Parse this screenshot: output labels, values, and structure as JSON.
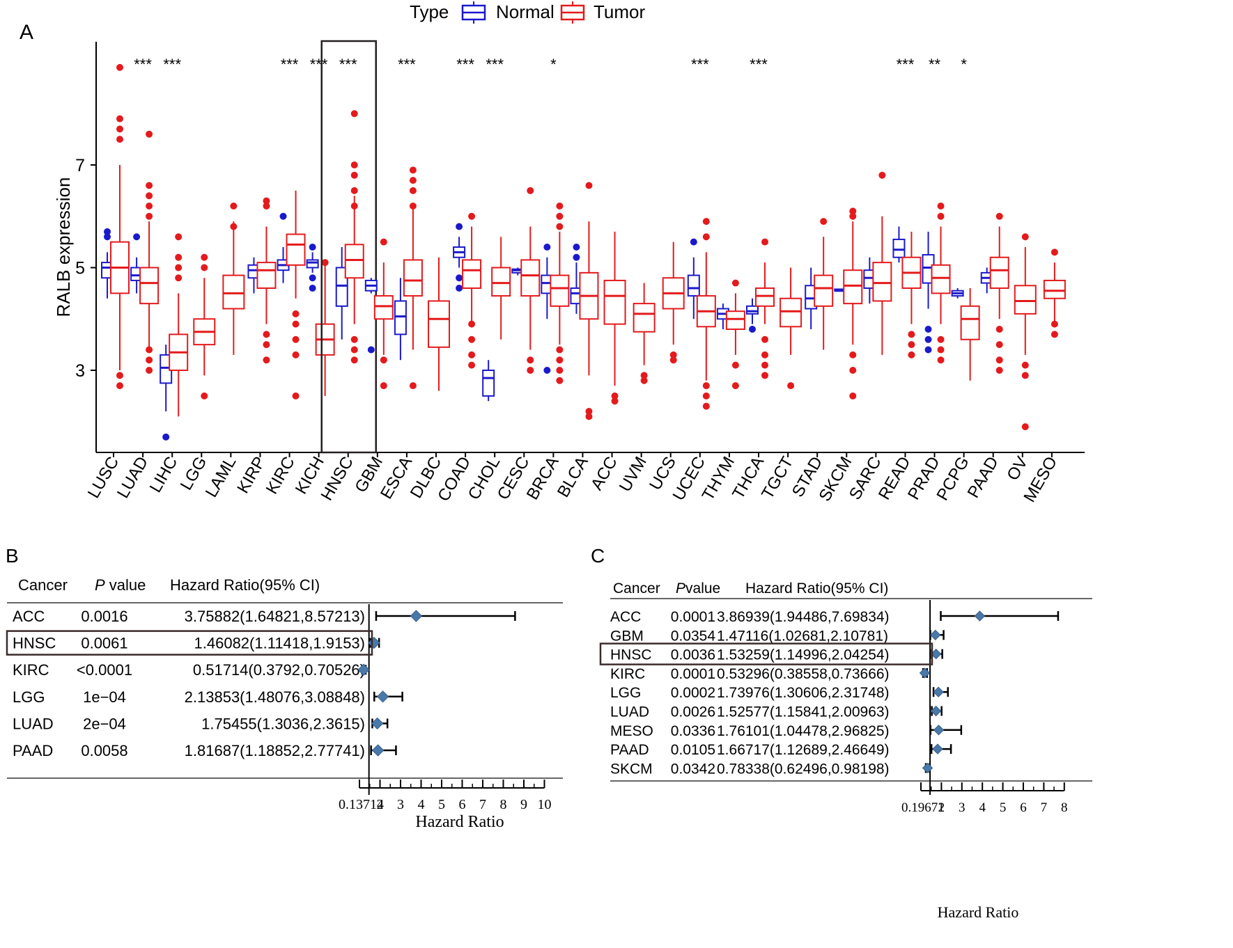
{
  "chart_data": [
    {
      "panel": "A",
      "type": "box",
      "ylabel": "RALB expression",
      "ylim": [
        1.4,
        9.4
      ],
      "yticks": [
        3,
        5,
        7
      ],
      "legend": {
        "title": "Type",
        "entries": [
          "Normal",
          "Tumor"
        ],
        "colors": [
          "#1a1acc",
          "#e41a1c"
        ],
        "placement": "top"
      },
      "highlight": "HNSC",
      "cancers": [
        {
          "name": "LUSC",
          "sig": "",
          "normal": {
            "q1": 4.8,
            "med": 5.0,
            "q3": 5.1,
            "lo": 4.4,
            "hi": 5.3,
            "out": [
              5.6,
              5.7
            ]
          },
          "tumor": {
            "q1": 4.5,
            "med": 5.0,
            "q3": 5.5,
            "lo": 3.0,
            "hi": 7.0,
            "out": [
              8.9,
              7.9,
              7.7,
              7.5,
              2.9,
              2.7
            ]
          }
        },
        {
          "name": "LUAD",
          "sig": "***",
          "normal": {
            "q1": 4.75,
            "med": 4.85,
            "q3": 5.0,
            "lo": 4.5,
            "hi": 5.2,
            "out": [
              5.6
            ]
          },
          "tumor": {
            "q1": 4.3,
            "med": 4.7,
            "q3": 5.0,
            "lo": 3.4,
            "hi": 5.9,
            "out": [
              7.6,
              6.6,
              6.4,
              6.2,
              6.0,
              3.4,
              3.2,
              3.0
            ]
          }
        },
        {
          "name": "LIHC",
          "sig": "***",
          "normal": {
            "q1": 2.75,
            "med": 3.05,
            "q3": 3.3,
            "lo": 2.2,
            "hi": 3.5,
            "out": [
              1.7
            ]
          },
          "tumor": {
            "q1": 3.0,
            "med": 3.35,
            "q3": 3.7,
            "lo": 2.1,
            "hi": 4.5,
            "out": [
              5.6,
              5.2,
              5.0,
              4.8
            ]
          }
        },
        {
          "name": "LGG",
          "sig": "",
          "normal": null,
          "tumor": {
            "q1": 3.5,
            "med": 3.75,
            "q3": 4.0,
            "lo": 2.9,
            "hi": 4.8,
            "out": [
              5.2,
              5.0,
              2.5
            ]
          }
        },
        {
          "name": "LAML",
          "sig": "",
          "normal": null,
          "tumor": {
            "q1": 4.2,
            "med": 4.5,
            "q3": 4.85,
            "lo": 3.3,
            "hi": 5.9,
            "out": [
              6.2,
              5.8
            ]
          }
        },
        {
          "name": "KIRP",
          "sig": "",
          "normal": {
            "q1": 4.8,
            "med": 4.95,
            "q3": 5.05,
            "lo": 4.5,
            "hi": 5.2,
            "out": []
          },
          "tumor": {
            "q1": 4.6,
            "med": 4.95,
            "q3": 5.1,
            "lo": 3.9,
            "hi": 5.8,
            "out": [
              6.3,
              6.2,
              3.7,
              3.5,
              3.2
            ]
          }
        },
        {
          "name": "KIRC",
          "sig": "***",
          "normal": {
            "q1": 4.95,
            "med": 5.05,
            "q3": 5.15,
            "lo": 4.7,
            "hi": 5.4,
            "out": [
              6.0
            ]
          },
          "tumor": {
            "q1": 5.05,
            "med": 5.45,
            "q3": 5.65,
            "lo": 4.4,
            "hi": 6.5,
            "out": [
              4.1,
              3.9,
              3.6,
              3.3,
              2.5
            ]
          }
        },
        {
          "name": "KICH",
          "sig": "***",
          "normal": {
            "q1": 5.0,
            "med": 5.1,
            "q3": 5.15,
            "lo": 4.9,
            "hi": 5.3,
            "out": [
              5.4,
              4.8,
              4.6
            ]
          },
          "tumor": {
            "q1": 3.3,
            "med": 3.6,
            "q3": 3.9,
            "lo": 2.5,
            "hi": 5.1,
            "out": [
              5.1
            ]
          }
        },
        {
          "name": "HNSC",
          "sig": "***",
          "normal": {
            "q1": 4.25,
            "med": 4.65,
            "q3": 5.0,
            "lo": 3.6,
            "hi": 5.4,
            "out": []
          },
          "tumor": {
            "q1": 4.8,
            "med": 5.15,
            "q3": 5.45,
            "lo": 3.9,
            "hi": 6.4,
            "out": [
              8.0,
              7.0,
              6.8,
              6.5,
              6.2,
              3.6,
              3.4,
              3.2
            ]
          }
        },
        {
          "name": "GBM",
          "sig": "",
          "normal": {
            "q1": 4.55,
            "med": 4.65,
            "q3": 4.75,
            "lo": 4.5,
            "hi": 4.8,
            "out": [
              3.4
            ]
          },
          "tumor": {
            "q1": 4.0,
            "med": 4.25,
            "q3": 4.45,
            "lo": 3.3,
            "hi": 5.1,
            "out": [
              5.5,
              3.2,
              2.7
            ]
          }
        },
        {
          "name": "ESCA",
          "sig": "***",
          "normal": {
            "q1": 3.7,
            "med": 4.05,
            "q3": 4.35,
            "lo": 3.2,
            "hi": 4.8,
            "out": []
          },
          "tumor": {
            "q1": 4.45,
            "med": 4.75,
            "q3": 5.15,
            "lo": 3.4,
            "hi": 6.2,
            "out": [
              6.9,
              6.7,
              6.5,
              6.2,
              2.7
            ]
          }
        },
        {
          "name": "DLBC",
          "sig": "",
          "normal": null,
          "tumor": {
            "q1": 3.45,
            "med": 4.0,
            "q3": 4.35,
            "lo": 2.6,
            "hi": 5.2,
            "out": []
          }
        },
        {
          "name": "COAD",
          "sig": "***",
          "normal": {
            "q1": 5.2,
            "med": 5.3,
            "q3": 5.4,
            "lo": 5.0,
            "hi": 5.6,
            "out": [
              5.8,
              4.8,
              4.6
            ]
          },
          "tumor": {
            "q1": 4.6,
            "med": 4.95,
            "q3": 5.15,
            "lo": 3.9,
            "hi": 5.8,
            "out": [
              6.0,
              3.9,
              3.6,
              3.3,
              3.1
            ]
          }
        },
        {
          "name": "CHOL",
          "sig": "***",
          "normal": {
            "q1": 2.5,
            "med": 2.85,
            "q3": 3.0,
            "lo": 2.4,
            "hi": 3.2,
            "out": []
          },
          "tumor": {
            "q1": 4.45,
            "med": 4.7,
            "q3": 5.0,
            "lo": 3.6,
            "hi": 5.6,
            "out": []
          }
        },
        {
          "name": "CESC",
          "sig": "",
          "normal": {
            "q1": 4.9,
            "med": 4.95,
            "q3": 4.97,
            "lo": 4.85,
            "hi": 5.0,
            "out": []
          },
          "tumor": {
            "q1": 4.45,
            "med": 4.85,
            "q3": 5.15,
            "lo": 3.4,
            "hi": 5.8,
            "out": [
              6.5,
              3.2,
              3.0
            ]
          }
        },
        {
          "name": "BRCA",
          "sig": "*",
          "normal": {
            "q1": 4.5,
            "med": 4.7,
            "q3": 4.85,
            "lo": 4.0,
            "hi": 5.2,
            "out": [
              5.4,
              3.0
            ]
          },
          "tumor": {
            "q1": 4.25,
            "med": 4.6,
            "q3": 4.85,
            "lo": 3.5,
            "hi": 5.7,
            "out": [
              6.2,
              6.0,
              5.8,
              3.4,
              3.2,
              3.0,
              2.8
            ]
          }
        },
        {
          "name": "BLCA",
          "sig": "",
          "normal": {
            "q1": 4.3,
            "med": 4.5,
            "q3": 4.6,
            "lo": 4.1,
            "hi": 5.1,
            "out": [
              5.4,
              5.2
            ]
          },
          "tumor": {
            "q1": 4.0,
            "med": 4.45,
            "q3": 4.9,
            "lo": 2.9,
            "hi": 5.9,
            "out": [
              6.6,
              2.2,
              2.1
            ]
          }
        },
        {
          "name": "ACC",
          "sig": "",
          "normal": null,
          "tumor": {
            "q1": 3.9,
            "med": 4.45,
            "q3": 4.75,
            "lo": 2.7,
            "hi": 5.7,
            "out": [
              2.5,
              2.4
            ]
          }
        },
        {
          "name": "UVM",
          "sig": "",
          "normal": null,
          "tumor": {
            "q1": 3.75,
            "med": 4.1,
            "q3": 4.3,
            "lo": 3.1,
            "hi": 4.7,
            "out": [
              2.9,
              2.8
            ]
          }
        },
        {
          "name": "UCS",
          "sig": "",
          "normal": null,
          "tumor": {
            "q1": 4.2,
            "med": 4.5,
            "q3": 4.8,
            "lo": 3.5,
            "hi": 5.5,
            "out": [
              3.3,
              3.2
            ]
          }
        },
        {
          "name": "UCEC",
          "sig": "***",
          "normal": {
            "q1": 4.45,
            "med": 4.6,
            "q3": 4.85,
            "lo": 4.0,
            "hi": 5.2,
            "out": [
              5.5
            ]
          },
          "tumor": {
            "q1": 3.85,
            "med": 4.15,
            "q3": 4.45,
            "lo": 2.8,
            "hi": 5.3,
            "out": [
              5.9,
              5.6,
              2.7,
              2.5,
              2.3
            ]
          }
        },
        {
          "name": "THYM",
          "sig": "",
          "normal": {
            "q1": 4.0,
            "med": 4.1,
            "q3": 4.2,
            "lo": 3.8,
            "hi": 4.3,
            "out": []
          },
          "tumor": {
            "q1": 3.8,
            "med": 4.0,
            "q3": 4.15,
            "lo": 3.3,
            "hi": 4.5,
            "out": [
              4.7,
              3.1,
              2.7
            ]
          }
        },
        {
          "name": "THCA",
          "sig": "***",
          "normal": {
            "q1": 4.1,
            "med": 4.15,
            "q3": 4.25,
            "lo": 3.9,
            "hi": 4.4,
            "out": [
              3.8
            ]
          },
          "tumor": {
            "q1": 4.25,
            "med": 4.45,
            "q3": 4.6,
            "lo": 3.9,
            "hi": 5.1,
            "out": [
              5.5,
              3.6,
              3.3,
              3.1,
              2.9
            ]
          }
        },
        {
          "name": "TGCT",
          "sig": "",
          "normal": null,
          "tumor": {
            "q1": 3.85,
            "med": 4.15,
            "q3": 4.4,
            "lo": 3.3,
            "hi": 5.0,
            "out": [
              2.7
            ]
          }
        },
        {
          "name": "STAD",
          "sig": "",
          "normal": {
            "q1": 4.2,
            "med": 4.4,
            "q3": 4.65,
            "lo": 3.8,
            "hi": 5.0,
            "out": []
          },
          "tumor": {
            "q1": 4.25,
            "med": 4.6,
            "q3": 4.85,
            "lo": 3.4,
            "hi": 5.6,
            "out": [
              5.9
            ]
          }
        },
        {
          "name": "SKCM",
          "sig": "",
          "normal": {
            "q1": 4.55,
            "med": 4.55,
            "q3": 4.58,
            "lo": 4.55,
            "hi": 4.58,
            "out": []
          },
          "tumor": {
            "q1": 4.3,
            "med": 4.65,
            "q3": 4.95,
            "lo": 3.5,
            "hi": 5.9,
            "out": [
              6.1,
              6.0,
              3.3,
              3.0,
              2.5
            ]
          }
        },
        {
          "name": "SARC",
          "sig": "",
          "normal": {
            "q1": 4.6,
            "med": 4.8,
            "q3": 4.95,
            "lo": 4.3,
            "hi": 5.2,
            "out": []
          },
          "tumor": {
            "q1": 4.35,
            "med": 4.7,
            "q3": 5.1,
            "lo": 3.3,
            "hi": 6.0,
            "out": [
              6.8
            ]
          }
        },
        {
          "name": "READ",
          "sig": "***",
          "normal": {
            "q1": 5.2,
            "med": 5.35,
            "q3": 5.55,
            "lo": 5.1,
            "hi": 5.8,
            "out": []
          },
          "tumor": {
            "q1": 4.6,
            "med": 4.9,
            "q3": 5.2,
            "lo": 3.9,
            "hi": 5.7,
            "out": [
              3.7,
              3.5,
              3.3
            ]
          }
        },
        {
          "name": "PRAD",
          "sig": "**",
          "normal": {
            "q1": 4.7,
            "med": 5.0,
            "q3": 5.25,
            "lo": 4.2,
            "hi": 5.7,
            "out": [
              3.8,
              3.6,
              3.4
            ]
          },
          "tumor": {
            "q1": 4.5,
            "med": 4.8,
            "q3": 5.05,
            "lo": 3.9,
            "hi": 5.8,
            "out": [
              6.2,
              6.0,
              3.6,
              3.4,
              3.2
            ]
          }
        },
        {
          "name": "PCPG",
          "sig": "*",
          "normal": {
            "q1": 4.45,
            "med": 4.5,
            "q3": 4.55,
            "lo": 4.4,
            "hi": 4.6,
            "out": []
          },
          "tumor": {
            "q1": 3.6,
            "med": 4.0,
            "q3": 4.25,
            "lo": 2.8,
            "hi": 4.6,
            "out": []
          }
        },
        {
          "name": "PAAD",
          "sig": "",
          "normal": {
            "q1": 4.7,
            "med": 4.8,
            "q3": 4.9,
            "lo": 4.5,
            "hi": 5.0,
            "out": []
          },
          "tumor": {
            "q1": 4.6,
            "med": 4.95,
            "q3": 5.2,
            "lo": 4.0,
            "hi": 5.8,
            "out": [
              6.0,
              3.8,
              3.5,
              3.2,
              3.0
            ]
          }
        },
        {
          "name": "OV",
          "sig": "",
          "normal": null,
          "tumor": {
            "q1": 4.1,
            "med": 4.35,
            "q3": 4.65,
            "lo": 3.3,
            "hi": 5.4,
            "out": [
              5.6,
              3.1,
              2.9,
              1.9
            ]
          }
        },
        {
          "name": "MESO",
          "sig": "",
          "normal": null,
          "tumor": {
            "q1": 4.4,
            "med": 4.55,
            "q3": 4.75,
            "lo": 3.9,
            "hi": 5.1,
            "out": [
              5.3,
              3.9,
              3.7
            ]
          }
        }
      ]
    },
    {
      "panel": "B",
      "type": "forest",
      "headers": {
        "cancer": "Cancer",
        "p": "P",
        "p_suffix": " value",
        "hr": "Hazard Ratio(95% CI)"
      },
      "xlabel": "Hazard Ratio",
      "x_ticks": [
        "0.13714",
        "2",
        "3",
        "4",
        "5",
        "6",
        "7",
        "8",
        "9",
        "10"
      ],
      "x_range": [
        0.13714,
        10
      ],
      "reference_line": 1,
      "highlight": "HNSC",
      "rows": [
        {
          "cancer": "ACC",
          "p": "0.0016",
          "ci_text": "3.75882(1.64821,8.57213)",
          "hr": 3.75882,
          "lo": 1.64821,
          "hi": 8.57213
        },
        {
          "cancer": "HNSC",
          "p": "0.0061",
          "ci_text": "1.46082(1.11418,1.9153)",
          "hr": 1.46082,
          "lo": 1.11418,
          "hi": 1.9153
        },
        {
          "cancer": "KIRC",
          "p": "<0.0001",
          "ci_text": "0.51714(0.3792,0.70526)",
          "hr": 0.51714,
          "lo": 0.3792,
          "hi": 0.70526
        },
        {
          "cancer": "LGG",
          "p": "1e−04",
          "ci_text": "2.13853(1.48076,3.08848)",
          "hr": 2.13853,
          "lo": 1.48076,
          "hi": 3.08848
        },
        {
          "cancer": "LUAD",
          "p": "2e−04",
          "ci_text": "1.75455(1.3036,2.3615)",
          "hr": 1.75455,
          "lo": 1.3036,
          "hi": 2.3615
        },
        {
          "cancer": "PAAD",
          "p": "0.0058",
          "ci_text": "1.81687(1.18852,2.77741)",
          "hr": 1.81687,
          "lo": 1.18852,
          "hi": 2.77741
        }
      ]
    },
    {
      "panel": "C",
      "type": "forest",
      "headers": {
        "cancer": "Cancer",
        "p": "P",
        "p_suffix": "value",
        "hr": "Hazard Ratio(95% CI)"
      },
      "xlabel": "Hazard Ratio",
      "x_ticks": [
        "0.19671",
        "2",
        "3",
        "4",
        "5",
        "6",
        "7",
        "8"
      ],
      "x_range": [
        0.19671,
        8
      ],
      "reference_line": 1,
      "highlight": "HNSC",
      "rows": [
        {
          "cancer": "ACC",
          "p": "0.0001",
          "ci_text": "3.86939(1.94486,7.69834)",
          "hr": 3.86939,
          "lo": 1.94486,
          "hi": 7.69834
        },
        {
          "cancer": "GBM",
          "p": "0.0354",
          "ci_text": "1.47116(1.02681,2.10781)",
          "hr": 1.47116,
          "lo": 1.02681,
          "hi": 2.10781
        },
        {
          "cancer": "HNSC",
          "p": "0.0036",
          "ci_text": "1.53259(1.14996,2.04254)",
          "hr": 1.53259,
          "lo": 1.14996,
          "hi": 2.04254
        },
        {
          "cancer": "KIRC",
          "p": "0.0001",
          "ci_text": "0.53296(0.38558,0.73666)",
          "hr": 0.53296,
          "lo": 0.38558,
          "hi": 0.73666
        },
        {
          "cancer": "LGG",
          "p": "0.0002",
          "ci_text": "1.73976(1.30606,2.31748)",
          "hr": 1.73976,
          "lo": 1.30606,
          "hi": 2.31748
        },
        {
          "cancer": "LUAD",
          "p": "0.0026",
          "ci_text": "1.52577(1.15841,2.00963)",
          "hr": 1.52577,
          "lo": 1.15841,
          "hi": 2.00963
        },
        {
          "cancer": "MESO",
          "p": "0.0336",
          "ci_text": "1.76101(1.04478,2.96825)",
          "hr": 1.76101,
          "lo": 1.04478,
          "hi": 2.96825
        },
        {
          "cancer": "PAAD",
          "p": "0.0105",
          "ci_text": "1.66717(1.12689,2.46649)",
          "hr": 1.66717,
          "lo": 1.12689,
          "hi": 2.46649
        },
        {
          "cancer": "SKCM",
          "p": "0.0342",
          "ci_text": "0.78338(0.62496,0.98198)",
          "hr": 0.78338,
          "lo": 0.62496,
          "hi": 0.98198
        }
      ]
    }
  ]
}
